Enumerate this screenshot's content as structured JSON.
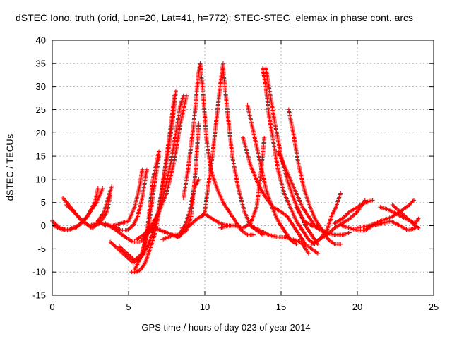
{
  "chart_data": {
    "type": "scatter",
    "title": "dSTEC Iono. truth (orid, Lon=20, Lat=41, h=772): STEC-STEC_elemax in phase cont. arcs",
    "xlabel": "GPS time / hours of day 023 of year 2014",
    "ylabel": "dSTEC  / TECUs",
    "xlim": [
      0,
      25
    ],
    "ylim": [
      -15,
      40
    ],
    "xticks": [
      0,
      5,
      10,
      15,
      20,
      25
    ],
    "yticks": [
      -15,
      -10,
      -5,
      0,
      5,
      10,
      15,
      20,
      25,
      30,
      35,
      40
    ],
    "grid": true,
    "marker": "+",
    "color": "#ff0000",
    "series": [
      {
        "x": [
          0,
          0.5,
          1,
          1.6,
          2.2,
          2.8,
          3.0
        ],
        "y": [
          1,
          -0.5,
          -1,
          -0.3,
          1.5,
          5,
          8
        ]
      },
      {
        "x": [
          0.1,
          0.6,
          1.1,
          1.7,
          2.3,
          2.9,
          3.3
        ],
        "y": [
          0,
          -0.8,
          -0.8,
          0,
          2,
          5,
          8
        ]
      },
      {
        "x": [
          0.7,
          1.2,
          1.8,
          2.4,
          2.9,
          3.4,
          3.9
        ],
        "y": [
          6,
          4,
          1.5,
          0,
          0.5,
          3,
          8.5
        ]
      },
      {
        "x": [
          0.9,
          1.4,
          2.0,
          2.6,
          3.1,
          3.6,
          3.8
        ],
        "y": [
          4.5,
          3,
          1,
          -0.5,
          0.5,
          3,
          6.5
        ]
      },
      {
        "x": [
          3.8,
          4.3,
          4.8,
          5.3,
          5.8,
          6.2,
          6.6,
          7.0
        ],
        "y": [
          -3.5,
          -5,
          -6.5,
          -8,
          -7,
          -2,
          10,
          16
        ]
      },
      {
        "x": [
          4.4,
          4.9,
          5.4,
          5.9,
          6.3,
          6.7,
          7.0
        ],
        "y": [
          -4.5,
          -6,
          -7.5,
          -6,
          -0.5,
          9,
          15
        ]
      },
      {
        "x": [
          5.2,
          5.5,
          5.8,
          6.1,
          6.4,
          6.7,
          7.0,
          7.3,
          7.6,
          7.9,
          8.1
        ],
        "y": [
          -10,
          -10,
          -9.5,
          -8,
          -5,
          -2,
          3,
          10,
          16,
          23,
          29
        ]
      },
      {
        "x": [
          5.4,
          5.7,
          6.0,
          6.3,
          6.6,
          6.9,
          7.2,
          7.5,
          7.8,
          8.0
        ],
        "y": [
          -9.5,
          -7.5,
          -6,
          -4,
          -1.5,
          2,
          8,
          15,
          22,
          28
        ]
      },
      {
        "x": [
          3.5,
          4.2,
          4.8,
          5.3,
          5.8,
          6.2,
          6.6,
          7.0,
          7.4,
          7.8,
          8.1,
          8.4,
          8.6
        ],
        "y": [
          0.5,
          -1,
          -2.5,
          -3.5,
          -3.5,
          -2,
          0,
          3,
          8,
          14,
          20,
          26,
          28
        ]
      },
      {
        "x": [
          5.5,
          6.0,
          6.5,
          7.0,
          7.5,
          8.0,
          8.4,
          8.8
        ],
        "y": [
          -3,
          -2,
          0,
          3,
          7,
          14,
          22,
          28
        ]
      },
      {
        "x": [
          4.0,
          4.5,
          4.9,
          5.3,
          5.6,
          5.9,
          6.2
        ],
        "y": [
          0,
          -1,
          -1,
          0,
          2,
          6,
          12
        ]
      },
      {
        "x": [
          3.0,
          3.5,
          4.0,
          4.5,
          5.0,
          5.4,
          5.7,
          5.9
        ],
        "y": [
          1,
          0,
          0,
          0.5,
          1,
          4,
          8,
          12
        ]
      },
      {
        "x": [
          6.3,
          6.7,
          7.1,
          7.5,
          7.9,
          8.3,
          8.6
        ],
        "y": [
          -1.5,
          -0.5,
          -1,
          -1.5,
          -2,
          -2.5,
          -1
        ]
      },
      {
        "x": [
          7.2,
          7.6,
          8.0,
          8.4,
          8.8,
          9.1,
          9.4,
          9.6
        ],
        "y": [
          -3,
          -2.5,
          -2,
          -2,
          -1,
          2,
          12,
          22
        ]
      },
      {
        "x": [
          8.6,
          8.9,
          9.2,
          9.4,
          9.5,
          9.6,
          9.7
        ],
        "y": [
          6,
          12,
          20,
          26,
          30,
          33,
          35
        ]
      },
      {
        "x": [
          9.7,
          9.9,
          10.1,
          10.4,
          10.8,
          11.2,
          11.6,
          12.0,
          12.4,
          12.8,
          13.2
        ],
        "y": [
          35,
          28,
          19,
          12,
          8,
          5,
          3,
          1,
          -1,
          -2,
          -2
        ]
      },
      {
        "x": [
          9.8,
          10.0,
          10.2,
          10.5,
          10.8,
          11.0,
          11.2
        ],
        "y": [
          2,
          3,
          8,
          15,
          24,
          30,
          35
        ]
      },
      {
        "x": [
          11.2,
          11.5,
          11.8,
          12.2,
          12.6,
          13.0,
          13.4,
          13.8
        ],
        "y": [
          34,
          24,
          15,
          8,
          3,
          0,
          -1,
          -2
        ]
      },
      {
        "x": [
          8.5,
          9.0,
          9.5,
          10.0,
          10.5,
          11.0,
          11.5,
          12.0
        ],
        "y": [
          -0.5,
          0,
          1.5,
          2.5,
          1.5,
          0.5,
          0,
          0
        ]
      },
      {
        "x": [
          8.2,
          8.4,
          8.7,
          9.0,
          9.3,
          9.6
        ],
        "y": [
          -2.5,
          -1.5,
          0,
          3,
          8,
          10
        ]
      },
      {
        "x": [
          11.0,
          11.5,
          12.0,
          12.5,
          13.0,
          13.4,
          13.7,
          13.9
        ],
        "y": [
          -0.5,
          0,
          0,
          -0.5,
          0.5,
          4,
          12,
          19
        ]
      },
      {
        "x": [
          12.8,
          13.2,
          13.6,
          14.0,
          14.4,
          14.8,
          15.2,
          15.6,
          16.0
        ],
        "y": [
          26,
          20,
          14,
          8,
          4,
          1,
          -1,
          -3,
          -4
        ]
      },
      {
        "x": [
          13.8,
          14.0,
          14.2,
          14.5,
          14.8,
          15.2,
          15.6,
          16.0,
          16.4,
          16.8,
          17.2
        ],
        "y": [
          34,
          30,
          24,
          18,
          12,
          7,
          4,
          1,
          -1,
          -3,
          -4
        ]
      },
      {
        "x": [
          14.0,
          14.3,
          14.6,
          15.0,
          15.4,
          15.8,
          16.2,
          16.6,
          17.0,
          17.4
        ],
        "y": [
          34,
          28,
          22,
          15,
          10,
          6,
          3,
          0,
          -2,
          -4
        ]
      },
      {
        "x": [
          12.5,
          13.0,
          13.5,
          14.0,
          14.5,
          15.0,
          15.4,
          15.8,
          16.2,
          16.6,
          17.0,
          17.4
        ],
        "y": [
          19,
          13,
          9,
          6,
          4,
          3,
          2,
          0,
          -2,
          -4,
          -5,
          -6
        ]
      },
      {
        "x": [
          15.5,
          15.8,
          16.1,
          16.5,
          16.9,
          17.3,
          17.7,
          18.1,
          18.5,
          18.9
        ],
        "y": [
          25,
          20,
          14,
          8,
          4,
          1,
          -1,
          -3,
          -4,
          -4
        ]
      },
      {
        "x": [
          14.8,
          15.2,
          15.6,
          16.0,
          16.4,
          16.8,
          17.2,
          17.6
        ],
        "y": [
          16,
          13,
          10,
          7,
          4,
          2,
          0,
          -1
        ]
      },
      {
        "x": [
          13.0,
          13.6,
          14.2,
          14.8,
          15.3,
          15.8,
          16.3,
          16.8
        ],
        "y": [
          0,
          -1,
          -2,
          -2.5,
          -2.5,
          -3,
          -3.5,
          -6
        ]
      },
      {
        "x": [
          16.0,
          16.5,
          17.0,
          17.5,
          18.0,
          18.5,
          19.0,
          19.5
        ],
        "y": [
          4,
          1,
          0,
          -0.5,
          -1.5,
          -2,
          -2,
          -1.5
        ]
      },
      {
        "x": [
          17.0,
          17.5,
          18.0,
          18.3,
          18.6,
          18.9
        ],
        "y": [
          -4,
          -3,
          -1,
          2,
          4,
          7
        ]
      },
      {
        "x": [
          17.5,
          18.0,
          18.5,
          19.0,
          19.5,
          20.0,
          20.5
        ],
        "y": [
          -3,
          -2,
          -0.5,
          0.5,
          1.5,
          3,
          5.5
        ]
      },
      {
        "x": [
          18.5,
          19.0,
          19.5,
          20.0,
          20.5,
          21.0
        ],
        "y": [
          0.5,
          1.5,
          3,
          4,
          5,
          5.5
        ]
      },
      {
        "x": [
          19.0,
          19.5,
          20.0,
          20.5,
          21.0,
          21.5
        ],
        "y": [
          0,
          -0.5,
          -1,
          -1,
          0,
          0.5
        ]
      },
      {
        "x": [
          20.0,
          20.8,
          21.5,
          22.2,
          22.8,
          23.4,
          23.7
        ],
        "y": [
          -0.5,
          0,
          1,
          1.8,
          3,
          4.5,
          5.5
        ]
      },
      {
        "x": [
          21.0,
          21.6,
          22.2,
          22.8,
          23.3,
          23.8
        ],
        "y": [
          0,
          0.5,
          1,
          0,
          -1,
          -0.5
        ]
      },
      {
        "x": [
          21.5,
          22.0,
          22.6,
          23.2,
          23.8,
          24.0
        ],
        "y": [
          4,
          3.5,
          2.5,
          1.5,
          0.5,
          1.5
        ]
      },
      {
        "x": [
          22.3,
          22.8,
          23.3,
          23.8,
          24.0
        ],
        "y": [
          4.5,
          3,
          1.5,
          0,
          -0.5
        ]
      }
    ]
  }
}
